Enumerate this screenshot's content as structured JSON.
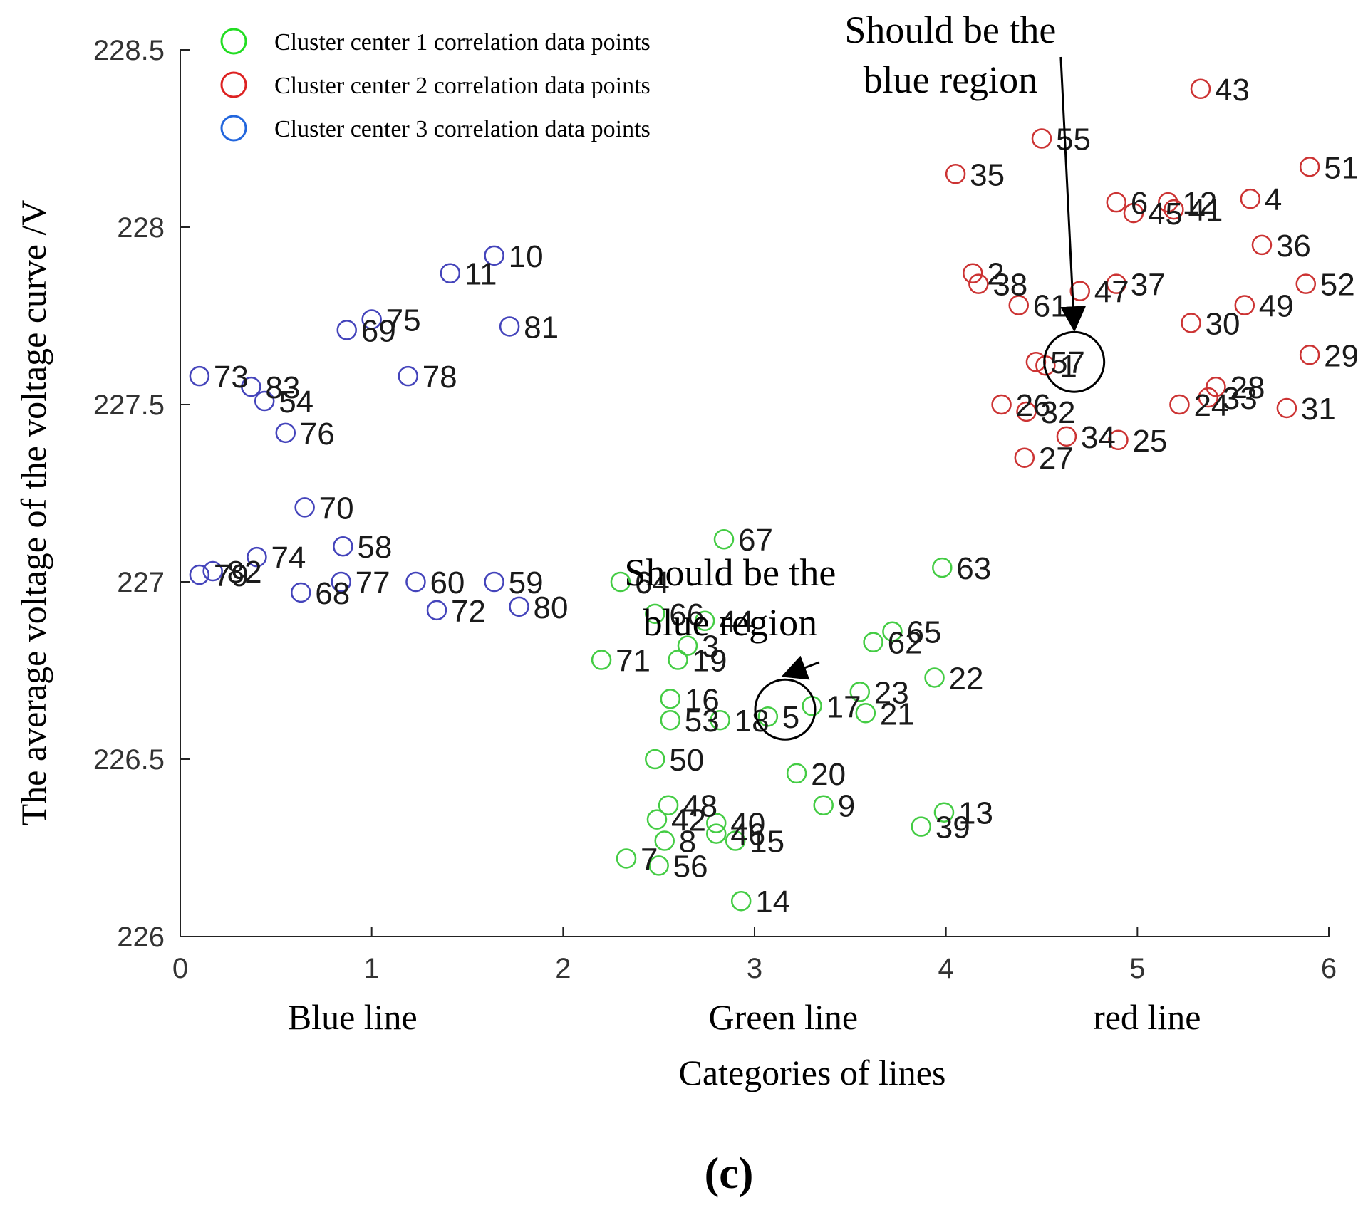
{
  "chart_data": {
    "type": "scatter",
    "xlim": [
      0,
      6
    ],
    "ylim": [
      226,
      228.5
    ],
    "xticks": [
      0,
      1,
      2,
      3,
      4,
      5,
      6
    ],
    "yticks": [
      226,
      226.5,
      227,
      227.5,
      228,
      228.5
    ],
    "ytick_labels": [
      "226",
      "226.5",
      "227",
      "227.5",
      "228",
      "228.5"
    ],
    "xlabel": "Categories of lines",
    "ylabel": "The average voltage of the voltage curve /V",
    "group_labels": [
      {
        "text": "Blue line",
        "x": 0.9
      },
      {
        "text": "Green line",
        "x": 3.15
      },
      {
        "text": "red line",
        "x": 5.05
      }
    ],
    "panel_label": "(c)",
    "legend": [
      {
        "label": "Cluster center 1 correlation data points",
        "color": "#22dd22"
      },
      {
        "label": "Cluster center 2 correlation data points",
        "color": "#dd2222"
      },
      {
        "label": "Cluster center 3 correlation data points",
        "color": "#2266dd"
      }
    ],
    "annotations": [
      {
        "lines": [
          "Should be the",
          "blue region"
        ],
        "target_x": 4.67,
        "target_y": 227.62,
        "text_x": 4.6,
        "text_y": 228.5
      },
      {
        "lines": [
          "Should be the",
          "blue region"
        ],
        "target_x": 3.16,
        "target_y": 226.64,
        "text_x": 3.45,
        "text_y": 226.97
      }
    ],
    "series": [
      {
        "name": "Cluster center 1 correlation data points",
        "color": "#44cc44",
        "points": [
          {
            "id": "3",
            "x": 2.65,
            "y": 226.82
          },
          {
            "id": "5",
            "x": 3.07,
            "y": 226.62
          },
          {
            "id": "7",
            "x": 2.33,
            "y": 226.22
          },
          {
            "id": "8",
            "x": 2.53,
            "y": 226.27
          },
          {
            "id": "9",
            "x": 3.36,
            "y": 226.37
          },
          {
            "id": "13",
            "x": 3.99,
            "y": 226.35
          },
          {
            "id": "14",
            "x": 2.93,
            "y": 226.1
          },
          {
            "id": "15",
            "x": 2.9,
            "y": 226.27
          },
          {
            "id": "16",
            "x": 2.56,
            "y": 226.67
          },
          {
            "id": "17",
            "x": 3.3,
            "y": 226.65
          },
          {
            "id": "18",
            "x": 2.82,
            "y": 226.61
          },
          {
            "id": "19",
            "x": 2.6,
            "y": 226.78
          },
          {
            "id": "20",
            "x": 3.22,
            "y": 226.46
          },
          {
            "id": "21",
            "x": 3.58,
            "y": 226.63
          },
          {
            "id": "22",
            "x": 3.94,
            "y": 226.73
          },
          {
            "id": "23",
            "x": 3.55,
            "y": 226.69
          },
          {
            "id": "39",
            "x": 3.87,
            "y": 226.31
          },
          {
            "id": "40",
            "x": 2.8,
            "y": 226.32
          },
          {
            "id": "42",
            "x": 2.49,
            "y": 226.33
          },
          {
            "id": "44",
            "x": 2.74,
            "y": 226.89
          },
          {
            "id": "46",
            "x": 2.8,
            "y": 226.29
          },
          {
            "id": "48",
            "x": 2.55,
            "y": 226.37
          },
          {
            "id": "50",
            "x": 2.48,
            "y": 226.5
          },
          {
            "id": "53",
            "x": 2.56,
            "y": 226.61
          },
          {
            "id": "56",
            "x": 2.5,
            "y": 226.2
          },
          {
            "id": "62",
            "x": 3.62,
            "y": 226.83
          },
          {
            "id": "63",
            "x": 3.98,
            "y": 227.04
          },
          {
            "id": "64",
            "x": 2.3,
            "y": 227.0
          },
          {
            "id": "65",
            "x": 3.72,
            "y": 226.86
          },
          {
            "id": "66",
            "x": 2.48,
            "y": 226.91
          },
          {
            "id": "67",
            "x": 2.84,
            "y": 227.12
          },
          {
            "id": "71",
            "x": 2.2,
            "y": 226.78
          }
        ]
      },
      {
        "name": "Cluster center 2 correlation data points",
        "color": "#cc3333",
        "points": [
          {
            "id": "1",
            "x": 4.52,
            "y": 227.61
          },
          {
            "id": "2",
            "x": 4.14,
            "y": 227.87
          },
          {
            "id": "4",
            "x": 5.59,
            "y": 228.08
          },
          {
            "id": "6",
            "x": 4.89,
            "y": 228.07
          },
          {
            "id": "12",
            "x": 5.16,
            "y": 228.07
          },
          {
            "id": "24",
            "x": 5.22,
            "y": 227.5
          },
          {
            "id": "25",
            "x": 4.9,
            "y": 227.4
          },
          {
            "id": "26",
            "x": 4.29,
            "y": 227.5
          },
          {
            "id": "27",
            "x": 4.41,
            "y": 227.35
          },
          {
            "id": "28",
            "x": 5.41,
            "y": 227.55
          },
          {
            "id": "29",
            "x": 5.9,
            "y": 227.64
          },
          {
            "id": "30",
            "x": 5.28,
            "y": 227.73
          },
          {
            "id": "31",
            "x": 5.78,
            "y": 227.49
          },
          {
            "id": "32",
            "x": 4.42,
            "y": 227.48
          },
          {
            "id": "33",
            "x": 5.37,
            "y": 227.52
          },
          {
            "id": "34",
            "x": 4.63,
            "y": 227.41
          },
          {
            "id": "35",
            "x": 4.05,
            "y": 228.15
          },
          {
            "id": "36",
            "x": 5.65,
            "y": 227.95
          },
          {
            "id": "37",
            "x": 4.89,
            "y": 227.84
          },
          {
            "id": "38",
            "x": 4.17,
            "y": 227.84
          },
          {
            "id": "41",
            "x": 5.19,
            "y": 228.05
          },
          {
            "id": "43",
            "x": 5.33,
            "y": 228.39
          },
          {
            "id": "45",
            "x": 4.98,
            "y": 228.04
          },
          {
            "id": "47",
            "x": 4.7,
            "y": 227.82
          },
          {
            "id": "49",
            "x": 5.56,
            "y": 227.78
          },
          {
            "id": "51",
            "x": 5.9,
            "y": 228.17
          },
          {
            "id": "52",
            "x": 5.88,
            "y": 227.84
          },
          {
            "id": "55",
            "x": 4.5,
            "y": 228.25
          },
          {
            "id": "57",
            "x": 4.47,
            "y": 227.62
          },
          {
            "id": "61",
            "x": 4.38,
            "y": 227.78
          }
        ]
      },
      {
        "name": "Cluster center 3 correlation data points",
        "color": "#4444bb",
        "points": [
          {
            "id": "10",
            "x": 1.64,
            "y": 227.92
          },
          {
            "id": "11",
            "x": 1.41,
            "y": 227.87
          },
          {
            "id": "54",
            "x": 0.44,
            "y": 227.51
          },
          {
            "id": "58",
            "x": 0.85,
            "y": 227.1
          },
          {
            "id": "59",
            "x": 1.64,
            "y": 227.0
          },
          {
            "id": "60",
            "x": 1.23,
            "y": 227.0
          },
          {
            "id": "68",
            "x": 0.63,
            "y": 226.97
          },
          {
            "id": "69",
            "x": 0.87,
            "y": 227.71
          },
          {
            "id": "70",
            "x": 0.65,
            "y": 227.21
          },
          {
            "id": "72",
            "x": 1.34,
            "y": 226.92
          },
          {
            "id": "73",
            "x": 0.1,
            "y": 227.58
          },
          {
            "id": "74",
            "x": 0.4,
            "y": 227.07
          },
          {
            "id": "75",
            "x": 1.0,
            "y": 227.74
          },
          {
            "id": "76",
            "x": 0.55,
            "y": 227.42
          },
          {
            "id": "77",
            "x": 0.84,
            "y": 227.0
          },
          {
            "id": "78",
            "x": 1.19,
            "y": 227.58
          },
          {
            "id": "79",
            "x": 0.1,
            "y": 227.02
          },
          {
            "id": "80",
            "x": 1.77,
            "y": 226.93
          },
          {
            "id": "81",
            "x": 1.72,
            "y": 227.72
          },
          {
            "id": "82",
            "x": 0.17,
            "y": 227.03
          },
          {
            "id": "83",
            "x": 0.37,
            "y": 227.55
          }
        ]
      }
    ]
  }
}
